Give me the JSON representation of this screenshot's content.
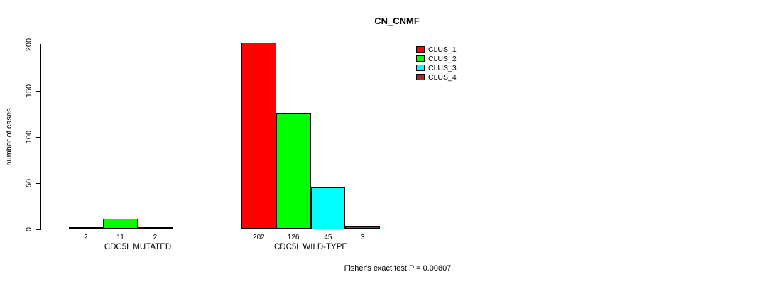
{
  "chart_data": {
    "type": "bar",
    "title": "CN_CNMF",
    "ylabel": "number of cases",
    "xlabel": "",
    "ylim": [
      0,
      200
    ],
    "yticks": [
      0,
      50,
      100,
      150,
      200
    ],
    "grid": false,
    "legend_position": "top-right",
    "series": [
      {
        "name": "CLUS_1",
        "color": "#FF0000"
      },
      {
        "name": "CLUS_2",
        "color": "#00FF00"
      },
      {
        "name": "CLUS_3",
        "color": "#00FFFF"
      },
      {
        "name": "CLUS_4",
        "color": "#A52A2A"
      }
    ],
    "groups": [
      {
        "label": "CDC5L MUTATED",
        "values": [
          2,
          11,
          2,
          0
        ],
        "bar_labels": [
          "2",
          "11",
          "2",
          ""
        ]
      },
      {
        "label": "CDC5L WILD-TYPE",
        "values": [
          202,
          126,
          45,
          3
        ],
        "bar_labels": [
          "202",
          "126",
          "45",
          "3"
        ]
      }
    ],
    "footnote": "Fisher's exact test P = 0.00807"
  }
}
